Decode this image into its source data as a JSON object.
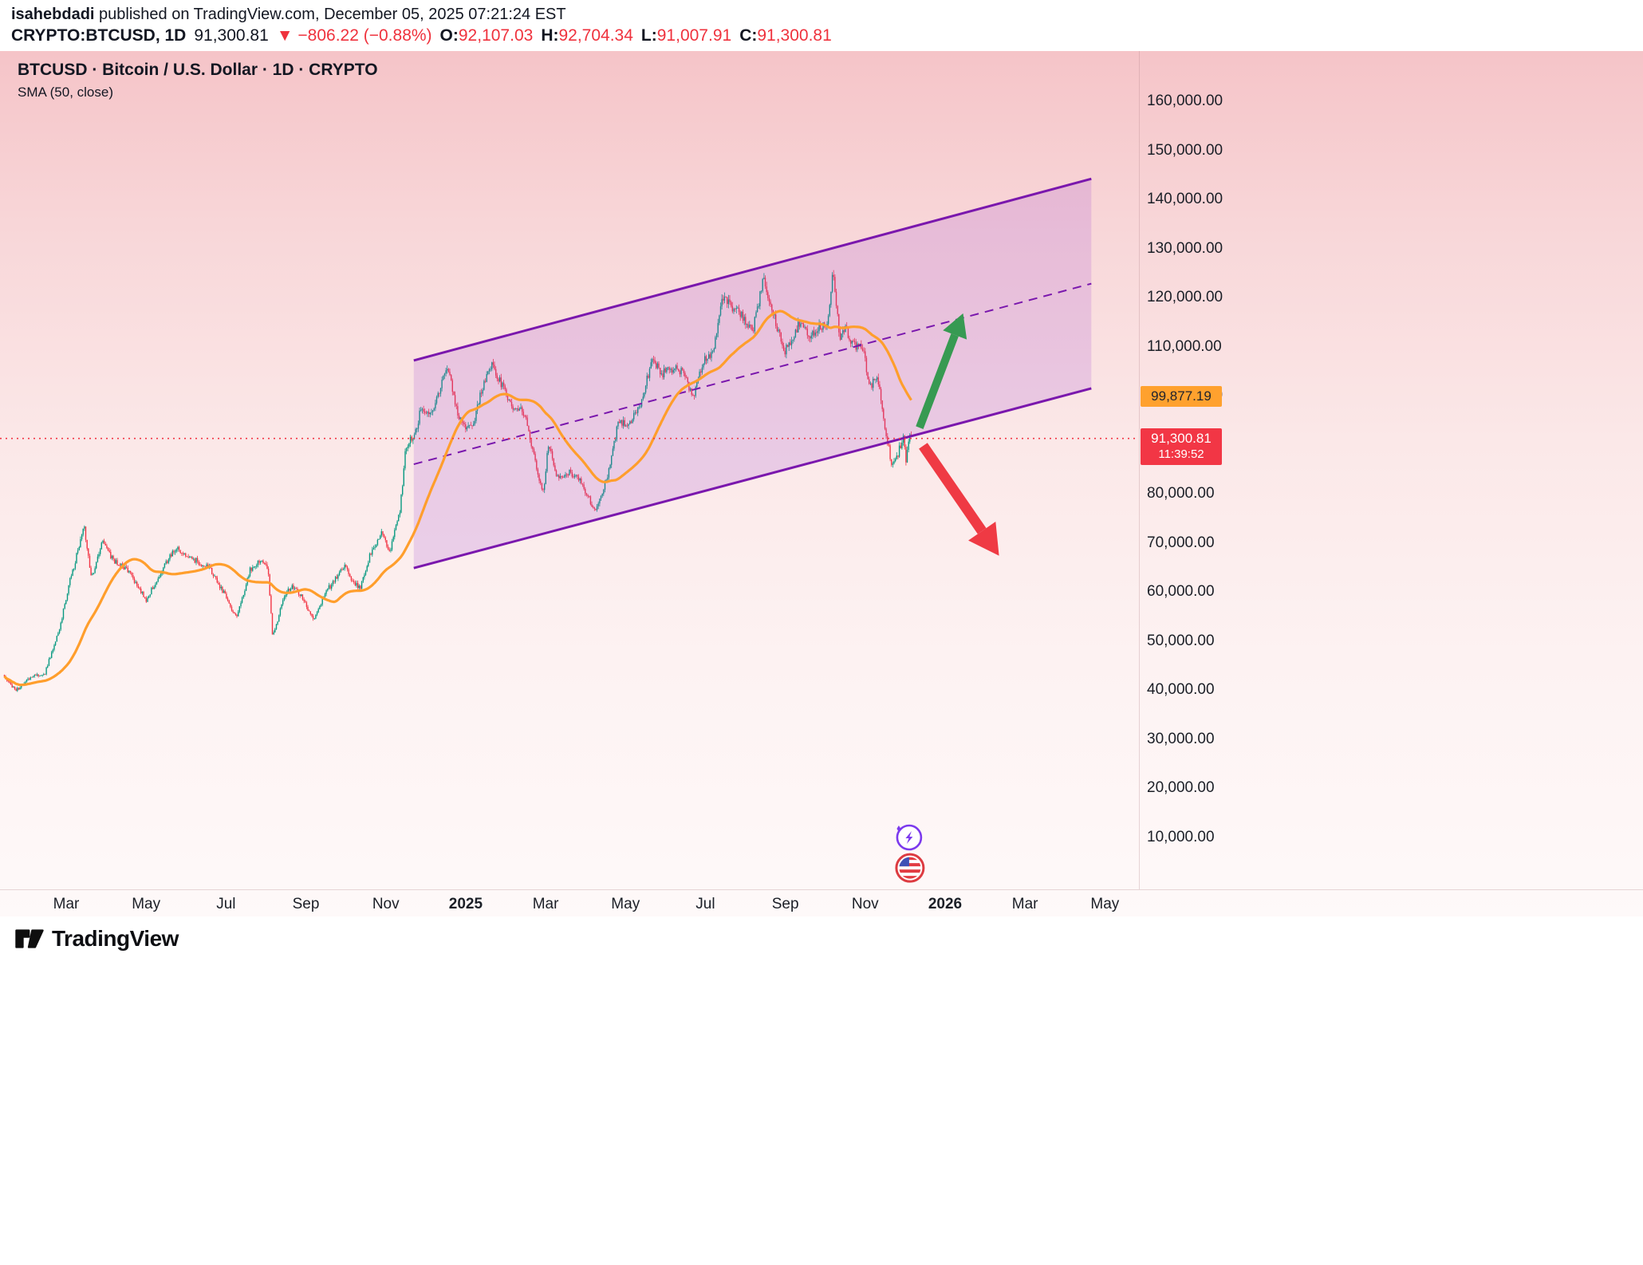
{
  "header": {
    "byline_user": "isahebdadi",
    "byline_rest": " published on TradingView.com, December 05, 2025 07:21:24 EST",
    "symbol": "CRYPTO:BTCUSD, 1D",
    "last_price": "91,300.81",
    "change": "▼ −806.22 (−0.88%)",
    "ohlc": [
      {
        "label": "O:",
        "value": "92,107.03"
      },
      {
        "label": "H:",
        "value": "92,704.34"
      },
      {
        "label": "L:",
        "value": "91,007.91"
      },
      {
        "label": "C:",
        "value": "91,300.81"
      }
    ]
  },
  "legend": {
    "title": "BTCUSD · Bitcoin / U.S. Dollar · 1D · CRYPTO",
    "indicator": "SMA (50, close)"
  },
  "badges": {
    "sma": "99,877.19",
    "price": "91,300.81",
    "countdown": "11:39:52"
  },
  "footer": {
    "brand": "TradingView"
  },
  "colors": {
    "up": "#089981",
    "down": "#f23645",
    "sma": "#ff9e2c",
    "channel": "#7a17ad",
    "channel_fill": "rgba(154,68,211,0.18)",
    "green_arrow": "#379a52",
    "red_arrow": "#ef3a44",
    "accent_red": "#ef323d"
  },
  "chart_data": {
    "type": "candlestick",
    "title": "BTCUSD Bitcoin / U.S. Dollar, 1D, CRYPTO",
    "indicator": "SMA (50, close)",
    "x_range": [
      "Jan 2024",
      "Jun 2026"
    ],
    "y_visible_range": [
      -500,
      170200
    ],
    "x_ticks": [
      {
        "label": "Mar",
        "m": 2
      },
      {
        "label": "May",
        "m": 4
      },
      {
        "label": "Jul",
        "m": 6
      },
      {
        "label": "Sep",
        "m": 8
      },
      {
        "label": "Nov",
        "m": 10
      },
      {
        "label": "2025",
        "m": 12,
        "bold": true
      },
      {
        "label": "Mar",
        "m": 14
      },
      {
        "label": "May",
        "m": 16
      },
      {
        "label": "Jul",
        "m": 18
      },
      {
        "label": "Sep",
        "m": 20
      },
      {
        "label": "Nov",
        "m": 22
      },
      {
        "label": "2026",
        "m": 24,
        "bold": true
      },
      {
        "label": "Mar",
        "m": 26
      },
      {
        "label": "May",
        "m": 28
      }
    ],
    "y_ticks": [
      {
        "v": 160000,
        "label": "160,000.00"
      },
      {
        "v": 150000,
        "label": "150,000.00"
      },
      {
        "v": 140000,
        "label": "140,000.00"
      },
      {
        "v": 130000,
        "label": "130,000.00"
      },
      {
        "v": 120000,
        "label": "120,000.00"
      },
      {
        "v": 110000,
        "label": "110,000.00"
      },
      {
        "v": 100000,
        "label": "100,000.00"
      },
      {
        "v": 90000,
        "label": "90,000.00"
      },
      {
        "v": 80000,
        "label": "80,000.00"
      },
      {
        "v": 70000,
        "label": "70,000.00"
      },
      {
        "v": 60000,
        "label": "60,000.00"
      },
      {
        "v": 50000,
        "label": "50,000.00"
      },
      {
        "v": 40000,
        "label": "40,000.00"
      },
      {
        "v": 30000,
        "label": "30,000.00"
      },
      {
        "v": 20000,
        "label": "20,000.00"
      },
      {
        "v": 10000,
        "label": "10,000.00"
      }
    ],
    "price_path": [
      [
        0.45,
        42800
      ],
      [
        0.75,
        39900
      ],
      [
        1.1,
        42700
      ],
      [
        1.45,
        43100
      ],
      [
        1.8,
        51500
      ],
      [
        2.1,
        62500
      ],
      [
        2.45,
        73200
      ],
      [
        2.63,
        62800
      ],
      [
        2.9,
        70500
      ],
      [
        3.2,
        66200
      ],
      [
        3.5,
        64800
      ],
      [
        3.75,
        61600
      ],
      [
        4.0,
        58300
      ],
      [
        4.3,
        63200
      ],
      [
        4.55,
        66700
      ],
      [
        4.75,
        69100
      ],
      [
        5.0,
        67800
      ],
      [
        5.3,
        66100
      ],
      [
        5.6,
        64900
      ],
      [
        5.9,
        60400
      ],
      [
        6.15,
        56600
      ],
      [
        6.28,
        54900
      ],
      [
        6.6,
        64600
      ],
      [
        6.9,
        66900
      ],
      [
        7.05,
        64600
      ],
      [
        7.17,
        50600
      ],
      [
        7.45,
        59100
      ],
      [
        7.65,
        61100
      ],
      [
        7.9,
        58900
      ],
      [
        8.2,
        54400
      ],
      [
        8.5,
        60100
      ],
      [
        8.8,
        63300
      ],
      [
        8.98,
        65700
      ],
      [
        9.15,
        62200
      ],
      [
        9.35,
        60700
      ],
      [
        9.6,
        67500
      ],
      [
        9.9,
        72400
      ],
      [
        10.1,
        68300
      ],
      [
        10.35,
        76100
      ],
      [
        10.5,
        89600
      ],
      [
        10.72,
        92100
      ],
      [
        10.9,
        97900
      ],
      [
        11.1,
        95700
      ],
      [
        11.35,
        101300
      ],
      [
        11.55,
        106300
      ],
      [
        11.75,
        97600
      ],
      [
        11.95,
        93700
      ],
      [
        12.2,
        94800
      ],
      [
        12.45,
        102700
      ],
      [
        12.65,
        106100
      ],
      [
        12.9,
        102200
      ],
      [
        13.15,
        97800
      ],
      [
        13.5,
        96400
      ],
      [
        13.78,
        84500
      ],
      [
        13.95,
        80700
      ],
      [
        14.07,
        90200
      ],
      [
        14.3,
        83300
      ],
      [
        14.6,
        84700
      ],
      [
        14.9,
        82500
      ],
      [
        15.1,
        78900
      ],
      [
        15.27,
        76400
      ],
      [
        15.6,
        85300
      ],
      [
        15.8,
        94000
      ],
      [
        16.1,
        94700
      ],
      [
        16.35,
        97200
      ],
      [
        16.55,
        103900
      ],
      [
        16.7,
        107300
      ],
      [
        16.9,
        104400
      ],
      [
        17.2,
        105800
      ],
      [
        17.45,
        104700
      ],
      [
        17.7,
        99900
      ],
      [
        17.95,
        107400
      ],
      [
        18.2,
        108900
      ],
      [
        18.45,
        120600
      ],
      [
        18.7,
        117700
      ],
      [
        18.95,
        116000
      ],
      [
        19.2,
        113700
      ],
      [
        19.45,
        123500
      ],
      [
        19.65,
        117300
      ],
      [
        19.85,
        112900
      ],
      [
        19.98,
        108800
      ],
      [
        20.15,
        111400
      ],
      [
        20.4,
        115900
      ],
      [
        20.6,
        112400
      ],
      [
        20.85,
        114200
      ],
      [
        21.05,
        114700
      ],
      [
        21.2,
        125400
      ],
      [
        21.35,
        111900
      ],
      [
        21.5,
        113800
      ],
      [
        21.7,
        110300
      ],
      [
        21.95,
        109900
      ],
      [
        22.1,
        101500
      ],
      [
        22.3,
        103700
      ],
      [
        22.45,
        95900
      ],
      [
        22.65,
        86400
      ],
      [
        22.8,
        87700
      ],
      [
        22.95,
        91500
      ],
      [
        23.03,
        86500
      ],
      [
        23.1,
        92700
      ],
      [
        23.16,
        91300.81
      ]
    ],
    "sma_period": 50,
    "sma_last": 99877.19,
    "last_close": 91300.81,
    "price_line": 91300.81,
    "channel": {
      "m1": 10.7,
      "upper1": 107200,
      "lower1": 64900,
      "m2": 27.66,
      "upper2": 144200,
      "lower2": 101500,
      "midline_dashed": true
    },
    "arrows": [
      {
        "name": "bullish-arrow",
        "color": "green",
        "m1": 23.36,
        "p1": 93500,
        "m2": 24.45,
        "p2": 116800,
        "width": 10
      },
      {
        "name": "bearish-arrow",
        "color": "red",
        "m1": 23.45,
        "p1": 89800,
        "m2": 25.35,
        "p2": 67400,
        "width": 13
      }
    ],
    "event_icons": [
      {
        "name": "flash-event-icon",
        "kind": "flash",
        "m": 23.1,
        "p": 10000
      },
      {
        "name": "us-flag-event-icon",
        "kind": "us-flag",
        "m": 23.12,
        "p": 3800
      }
    ]
  }
}
